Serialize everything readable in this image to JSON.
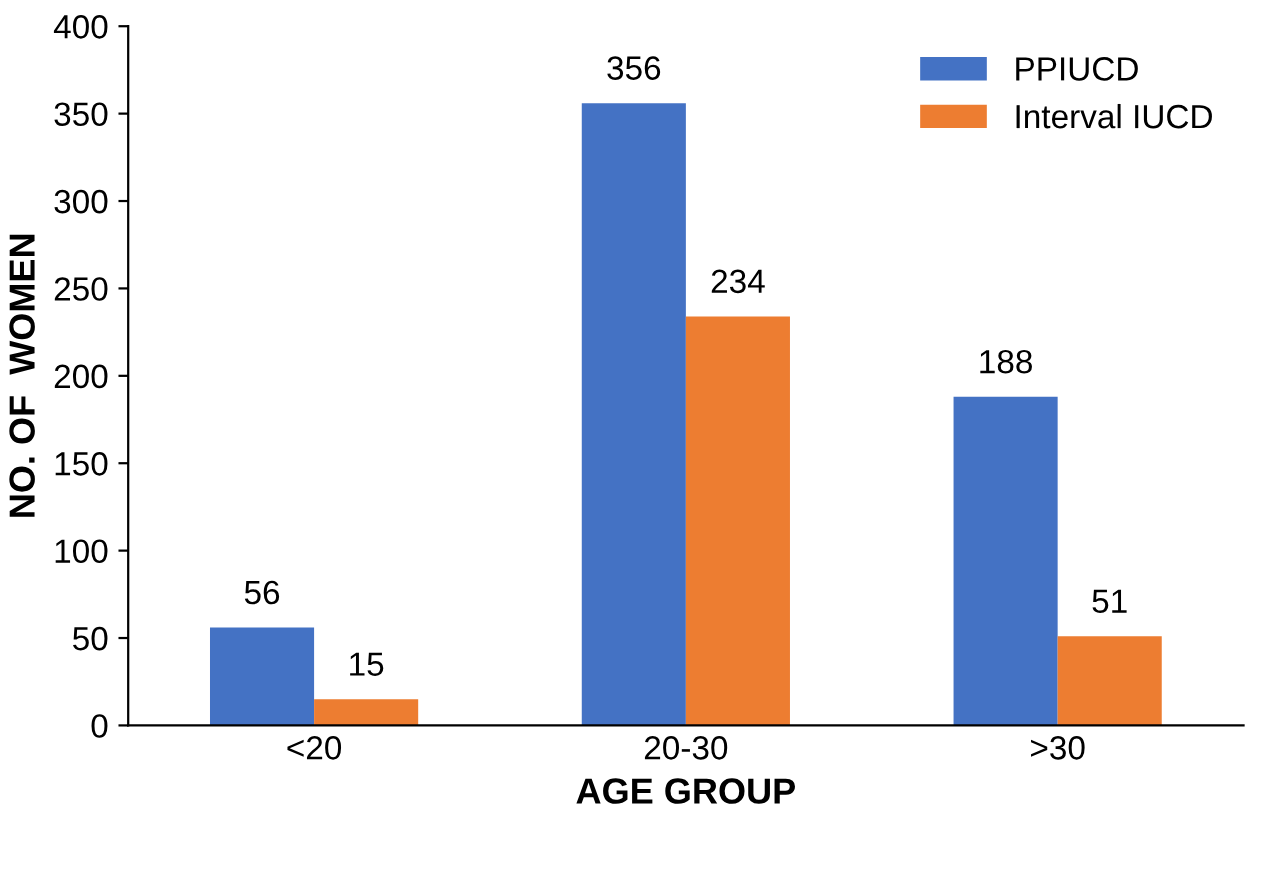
{
  "chart_data": {
    "type": "bar",
    "xlabel": "AGE GROUP",
    "ylabel": "NO. OF  WOMEN",
    "categories": [
      "<20",
      "20-30",
      ">30"
    ],
    "series": [
      {
        "name": "PPIUCD",
        "color": "#4472c4",
        "values": [
          56,
          356,
          188
        ]
      },
      {
        "name": "Interval IUCD",
        "color": "#ed7d31",
        "values": [
          15,
          234,
          51
        ]
      }
    ],
    "ylim": [
      0,
      400
    ],
    "yticks": [
      0,
      50,
      100,
      150,
      200,
      250,
      300,
      350,
      400
    ],
    "data_labels": true,
    "legend": "top right",
    "grid": false
  }
}
